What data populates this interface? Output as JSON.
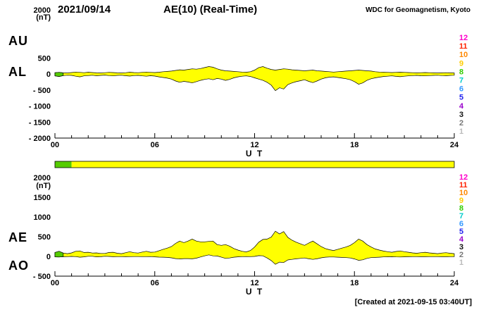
{
  "header": {
    "date": "2021/09/14",
    "title": "AE(10) (Real-Time)",
    "source": "WDC for Geomagnetism, Kyoto"
  },
  "footer": {
    "created": "[Created at 2021-09-15 03:40UT]"
  },
  "colors": {
    "fill": "#ffff00",
    "fill_alt": "#55cc00",
    "stroke": "#000000",
    "axis": "#000000"
  },
  "legend": {
    "items": [
      {
        "label": "12",
        "color": "#ff00cc"
      },
      {
        "label": "11",
        "color": "#ff2200"
      },
      {
        "label": "10",
        "color": "#ff8800"
      },
      {
        "label": "9",
        "color": "#ffcc00"
      },
      {
        "label": "8",
        "color": "#33cc00"
      },
      {
        "label": "7",
        "color": "#00cccc"
      },
      {
        "label": "6",
        "color": "#3399ff"
      },
      {
        "label": "5",
        "color": "#2222ee"
      },
      {
        "label": "4",
        "color": "#9900cc"
      },
      {
        "label": "3",
        "color": "#111111"
      },
      {
        "label": "2",
        "color": "#777777"
      },
      {
        "label": "1",
        "color": "#bbbbbb"
      }
    ]
  },
  "station_bar": {
    "segments": [
      {
        "from": 0,
        "to": 1,
        "color": "#55cc00"
      },
      {
        "from": 1,
        "to": 24,
        "color": "#ffff00"
      }
    ]
  },
  "chart_data": [
    {
      "type": "area",
      "panel": "AU-AL",
      "x_range": [
        0,
        24
      ],
      "t_step_hours": 0.25,
      "x_ticks": [
        {
          "v": 0,
          "label": "00"
        },
        {
          "v": 6,
          "label": "06"
        },
        {
          "v": 12,
          "label": "12"
        },
        {
          "v": 18,
          "label": "18"
        },
        {
          "v": 24,
          "label": "24"
        }
      ],
      "xlabel": "U T",
      "y_range": [
        -2000,
        2000
      ],
      "y_unit": "(nT)",
      "y_ticks": [
        {
          "v": 2000,
          "label": "2000"
        },
        {
          "v": 500,
          "label": "500"
        },
        {
          "v": 0,
          "label": "0"
        },
        {
          "v": -500,
          "label": "- 500"
        },
        {
          "v": -1000,
          "label": "- 1000"
        },
        {
          "v": -1500,
          "label": "- 1500"
        },
        {
          "v": -2000,
          "label": "- 2000"
        }
      ],
      "green_until_hour": 0.5,
      "series": [
        {
          "name": "AU",
          "values": [
            40,
            50,
            35,
            30,
            45,
            60,
            50,
            40,
            55,
            45,
            35,
            30,
            40,
            50,
            45,
            35,
            30,
            40,
            55,
            45,
            40,
            50,
            60,
            50,
            45,
            55,
            70,
            80,
            90,
            110,
            130,
            120,
            140,
            160,
            150,
            170,
            200,
            230,
            210,
            160,
            120,
            100,
            90,
            80,
            70,
            60,
            55,
            70,
            120,
            200,
            230,
            180,
            140,
            120,
            140,
            160,
            150,
            130,
            120,
            110,
            100,
            110,
            120,
            100,
            90,
            80,
            70,
            60,
            70,
            80,
            90,
            100,
            110,
            120,
            110,
            100,
            90,
            70,
            60,
            55,
            50,
            45,
            50,
            55,
            50,
            45,
            40,
            35,
            40,
            45,
            40,
            35,
            30,
            35,
            40,
            35,
            30
          ]
        },
        {
          "name": "AL",
          "values": [
            -60,
            -80,
            -50,
            -40,
            -45,
            -70,
            -90,
            -60,
            -50,
            -40,
            -55,
            -45,
            -35,
            -50,
            -60,
            -45,
            -40,
            -55,
            -65,
            -50,
            -45,
            -60,
            -70,
            -55,
            -65,
            -90,
            -110,
            -130,
            -160,
            -220,
            -260,
            -230,
            -250,
            -280,
            -240,
            -200,
            -170,
            -150,
            -180,
            -140,
            -160,
            -200,
            -170,
            -120,
            -90,
            -70,
            -60,
            -80,
            -120,
            -160,
            -200,
            -260,
            -350,
            -520,
            -430,
            -470,
            -330,
            -280,
            -240,
            -210,
            -180,
            -230,
            -270,
            -220,
            -160,
            -120,
            -100,
            -90,
            -110,
            -130,
            -150,
            -180,
            -240,
            -320,
            -280,
            -200,
            -150,
            -120,
            -100,
            -80,
            -70,
            -60,
            -75,
            -85,
            -70,
            -60,
            -50,
            -45,
            -55,
            -60,
            -50,
            -45,
            -40,
            -50,
            -55,
            -45,
            -40
          ]
        }
      ]
    },
    {
      "type": "area",
      "panel": "AE-AO",
      "x_range": [
        0,
        24
      ],
      "t_step_hours": 0.25,
      "x_ticks": [
        {
          "v": 0,
          "label": "00"
        },
        {
          "v": 6,
          "label": "06"
        },
        {
          "v": 12,
          "label": "12"
        },
        {
          "v": 18,
          "label": "18"
        },
        {
          "v": 24,
          "label": "24"
        }
      ],
      "xlabel": "U T",
      "y_range": [
        -500,
        2000
      ],
      "y_unit": "(nT)",
      "y_ticks": [
        {
          "v": 2000,
          "label": "2000"
        },
        {
          "v": 1500,
          "label": "1500"
        },
        {
          "v": 1000,
          "label": "1000"
        },
        {
          "v": 500,
          "label": "500"
        },
        {
          "v": 0,
          "label": "0"
        },
        {
          "v": -500,
          "label": "- 500"
        }
      ],
      "green_until_hour": 0.5,
      "series": [
        {
          "name": "AE",
          "values": [
            100,
            130,
            85,
            70,
            90,
            130,
            140,
            100,
            105,
            85,
            90,
            75,
            75,
            100,
            105,
            80,
            70,
            95,
            120,
            95,
            85,
            110,
            130,
            105,
            110,
            145,
            180,
            210,
            250,
            330,
            390,
            350,
            390,
            440,
            390,
            370,
            370,
            380,
            390,
            300,
            280,
            300,
            260,
            200,
            160,
            130,
            115,
            150,
            240,
            360,
            430,
            440,
            490,
            640,
            570,
            630,
            480,
            410,
            360,
            320,
            280,
            340,
            390,
            320,
            250,
            200,
            170,
            150,
            180,
            210,
            240,
            280,
            350,
            440,
            390,
            300,
            240,
            190,
            160,
            135,
            120,
            105,
            125,
            140,
            120,
            105,
            90,
            80,
            95,
            105,
            90,
            80,
            70,
            85,
            95,
            80,
            70
          ]
        },
        {
          "name": "AO",
          "values": [
            -10,
            -15,
            -8,
            -5,
            0,
            -5,
            -20,
            -10,
            3,
            3,
            -10,
            -8,
            3,
            0,
            -8,
            -5,
            -5,
            -8,
            -5,
            -3,
            -3,
            -5,
            -5,
            -3,
            -10,
            -18,
            -20,
            -25,
            -35,
            -55,
            -65,
            -55,
            -55,
            -60,
            -45,
            -15,
            15,
            40,
            15,
            10,
            -20,
            -50,
            -40,
            -20,
            -10,
            -5,
            -3,
            -5,
            0,
            20,
            15,
            -40,
            -105,
            -200,
            -145,
            -155,
            -90,
            -75,
            -60,
            -50,
            -40,
            -60,
            -75,
            -60,
            -35,
            -20,
            -15,
            -15,
            -20,
            -25,
            -30,
            -40,
            -65,
            -100,
            -85,
            -50,
            -30,
            -25,
            -20,
            -13,
            -10,
            -8,
            -13,
            -15,
            -10,
            -8,
            -5,
            -5,
            -8,
            -8,
            -5,
            -5,
            -5,
            -8,
            -8,
            -5,
            -5
          ]
        }
      ]
    }
  ]
}
